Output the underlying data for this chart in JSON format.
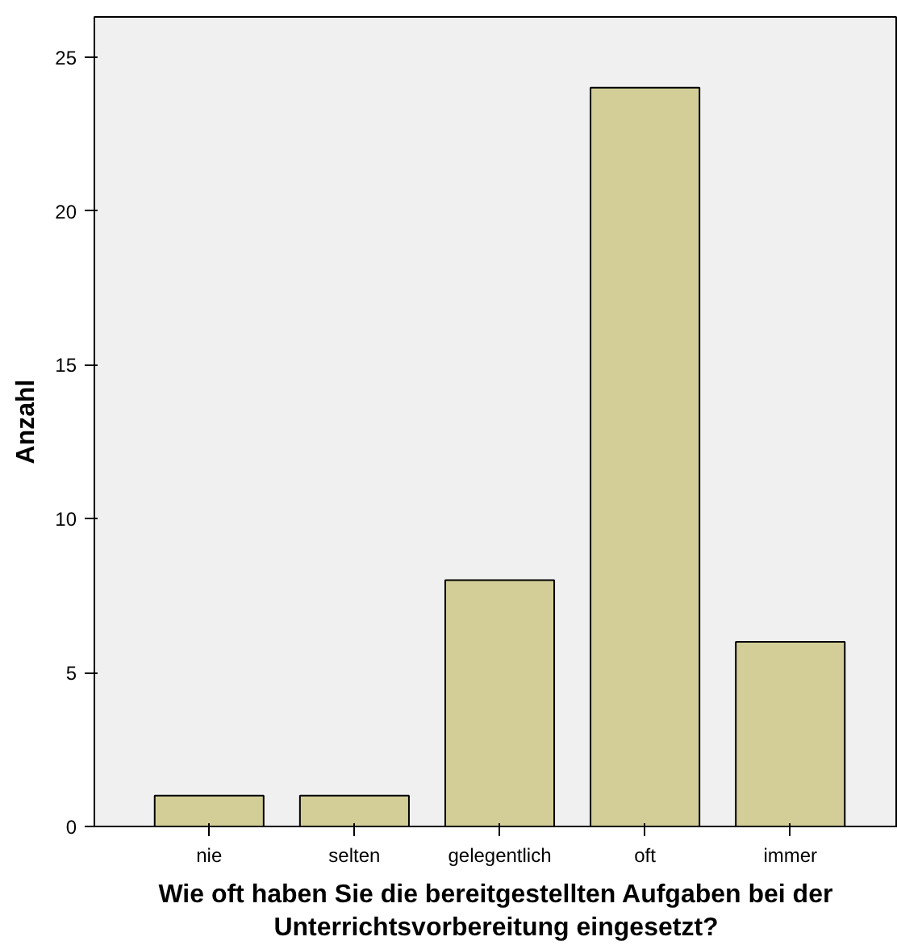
{
  "chart_data": {
    "type": "bar",
    "xlabel": "Wie oft haben Sie die bereitgestellten Aufgaben bei der Unterrichtsvorbereitung eingesetzt?",
    "ylabel": "Anzahl",
    "categories": [
      "nie",
      "selten",
      "gelegentlich",
      "oft",
      "immer"
    ],
    "values": [
      1,
      1,
      8,
      24,
      6
    ],
    "color": "#d3ce97",
    "ylim": [
      0,
      26.3
    ],
    "yticks": [
      0,
      5,
      10,
      15,
      20,
      25
    ],
    "grid": false
  }
}
